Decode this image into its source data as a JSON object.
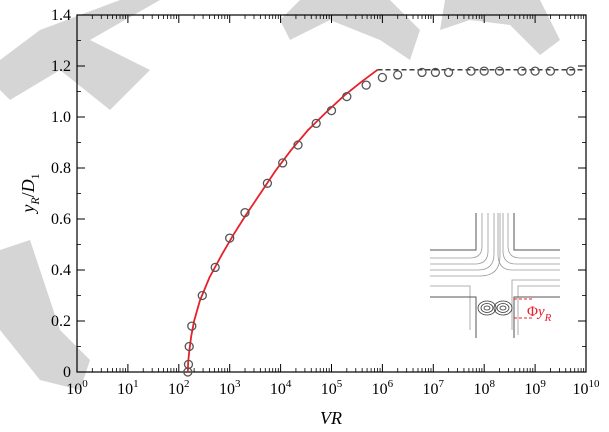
{
  "chart_data": {
    "type": "scatter",
    "title": "",
    "xlabel": "VR",
    "ylabel": "y_R/D_1",
    "x_scale": "log",
    "xlim": [
      1,
      10000000000
    ],
    "ylim": [
      0,
      1.4
    ],
    "x_ticks": [
      {
        "value": 1,
        "base": "10",
        "exp": "0"
      },
      {
        "value": 10,
        "base": "10",
        "exp": "1"
      },
      {
        "value": 100,
        "base": "10",
        "exp": "2"
      },
      {
        "value": 1000,
        "base": "10",
        "exp": "3"
      },
      {
        "value": 10000,
        "base": "10",
        "exp": "4"
      },
      {
        "value": 100000,
        "base": "10",
        "exp": "5"
      },
      {
        "value": 1000000,
        "base": "10",
        "exp": "6"
      },
      {
        "value": 10000000,
        "base": "10",
        "exp": "7"
      },
      {
        "value": 100000000,
        "base": "10",
        "exp": "8"
      },
      {
        "value": 1000000000,
        "base": "10",
        "exp": "9"
      },
      {
        "value": 10000000000,
        "base": "10",
        "exp": "10"
      }
    ],
    "y_ticks": [
      "0",
      "0.2",
      "0.4",
      "0.6",
      "0.8",
      "1.0",
      "1.2",
      "1.4"
    ],
    "grid": false,
    "series": [
      {
        "type": "scatter",
        "marker": "open-circle",
        "color": "#555555",
        "points": [
          [
            150,
            0.0
          ],
          [
            155,
            0.03
          ],
          [
            160,
            0.1
          ],
          [
            180,
            0.18
          ],
          [
            290,
            0.3
          ],
          [
            520,
            0.41
          ],
          [
            1000,
            0.525
          ],
          [
            2000,
            0.625
          ],
          [
            5500,
            0.74
          ],
          [
            11000,
            0.82
          ],
          [
            22000,
            0.89
          ],
          [
            50000,
            0.975
          ],
          [
            100000,
            1.025
          ],
          [
            200000,
            1.08
          ],
          [
            480000,
            1.125
          ],
          [
            1000000,
            1.155
          ],
          [
            2000000,
            1.165
          ],
          [
            6000000,
            1.175
          ],
          [
            11000000,
            1.175
          ],
          [
            20000000,
            1.175
          ],
          [
            55000000,
            1.18
          ],
          [
            100000000,
            1.18
          ],
          [
            200000000,
            1.18
          ],
          [
            550000000,
            1.18
          ],
          [
            1000000000,
            1.18
          ],
          [
            2000000000,
            1.18
          ],
          [
            5000000000,
            1.18
          ]
        ]
      },
      {
        "type": "line",
        "color": "#e8202a",
        "style": "solid",
        "points": [
          [
            150,
            0.0
          ],
          [
            153,
            0.04
          ],
          [
            160,
            0.08
          ],
          [
            175,
            0.14
          ],
          [
            200,
            0.2
          ],
          [
            260,
            0.28
          ],
          [
            400,
            0.37
          ],
          [
            700,
            0.46
          ],
          [
            1200,
            0.54
          ],
          [
            2000,
            0.61
          ],
          [
            4000,
            0.7
          ],
          [
            8000,
            0.79
          ],
          [
            16000,
            0.87
          ],
          [
            35000,
            0.95
          ],
          [
            80000,
            1.02
          ],
          [
            180000,
            1.085
          ],
          [
            400000,
            1.14
          ],
          [
            800000,
            1.185
          ]
        ]
      },
      {
        "type": "line",
        "color": "#000000",
        "style": "dashed",
        "points": [
          [
            800000,
            1.185
          ],
          [
            10000000000,
            1.185
          ]
        ]
      }
    ],
    "inset": {
      "description_label": "y_R",
      "label_color": "#e8202a"
    }
  }
}
